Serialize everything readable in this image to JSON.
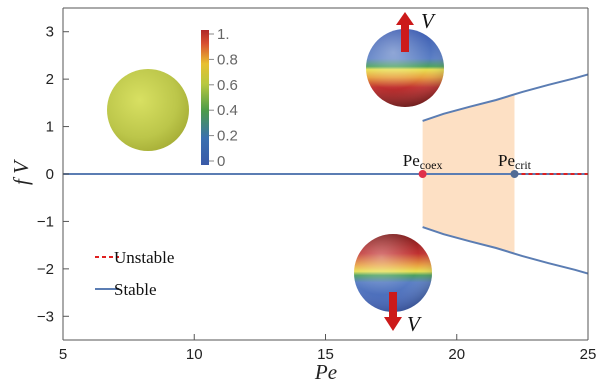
{
  "chart_data": {
    "type": "line",
    "xlabel": "Pe",
    "ylabel": "f V",
    "xlim": [
      5,
      25
    ],
    "ylim": [
      -3.5,
      3.5
    ],
    "xticks": [
      "5",
      "10",
      "15",
      "20",
      "25"
    ],
    "yticks": [
      "3",
      "2",
      "1",
      "0",
      "-1",
      "-2",
      "-3"
    ],
    "ytick_values": [
      3,
      2,
      1,
      0,
      -1,
      -2,
      -3
    ],
    "series": [
      {
        "name": "Stable",
        "style": "solid",
        "color": "#5b7db3",
        "x": [
          5,
          25
        ],
        "y": [
          0,
          0
        ]
      },
      {
        "name": "Unstable",
        "style": "dashed",
        "color": "#e02020",
        "x": [
          22.2,
          25
        ],
        "y": [
          0,
          0
        ]
      },
      {
        "name": "Stable",
        "style": "solid",
        "color": "#5b7db3",
        "x": [
          18.7,
          19.5,
          20.5,
          21.5,
          22.5,
          23.5,
          24.5,
          25
        ],
        "y": [
          1.12,
          1.27,
          1.42,
          1.56,
          1.73,
          1.88,
          2.02,
          2.1
        ]
      },
      {
        "name": "Stable",
        "style": "solid",
        "color": "#5b7db3",
        "x": [
          18.7,
          19.5,
          20.5,
          21.5,
          22.5,
          23.5,
          24.5,
          25
        ],
        "y": [
          -1.12,
          -1.27,
          -1.42,
          -1.56,
          -1.73,
          -1.88,
          -2.02,
          -2.1
        ]
      }
    ],
    "shaded_region": {
      "x": [
        18.7,
        22.2
      ],
      "color": "#fde0c4"
    },
    "markers": [
      {
        "label": "Pe",
        "sub": "coex",
        "x": 18.7,
        "y": 0,
        "color": "#e0304a"
      },
      {
        "label": "Pe",
        "sub": "crit",
        "x": 22.2,
        "y": 0,
        "color": "#506b96"
      }
    ],
    "legend": {
      "position": "bottom-left",
      "entries": [
        {
          "label": "Unstable",
          "style": "dashed",
          "color": "#e02020"
        },
        {
          "label": "Stable",
          "style": "solid",
          "color": "#5b7db3"
        }
      ]
    },
    "colorbar": {
      "ticks": [
        "1.",
        "0.8",
        "0.6",
        "0.4",
        "0.2",
        "0"
      ],
      "colors": [
        "#c03030",
        "#e8c030",
        "#e8e840",
        "#4a9a4a",
        "#3a70b0",
        "#3a5aa8"
      ]
    },
    "annotations": {
      "velocity_label": "V"
    },
    "grid": false
  }
}
